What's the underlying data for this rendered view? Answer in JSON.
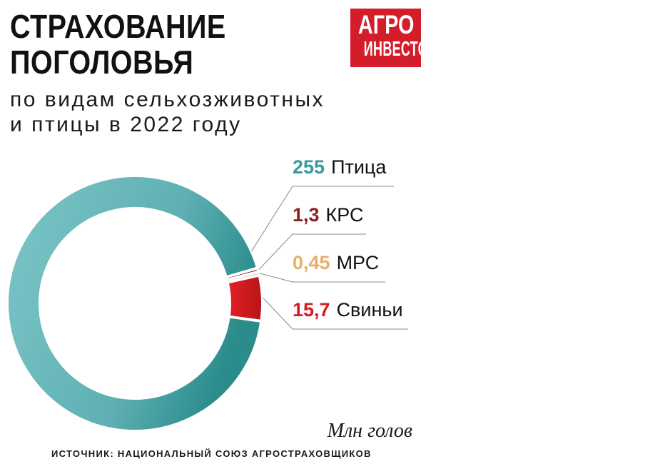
{
  "title": "СТРАХОВАНИЕ ПОГОЛОВЬЯ",
  "subtitle_line1": "по видам сельхозживотных",
  "subtitle_line2": "и птицы в 2022 году",
  "logo": {
    "line1": "АГРО",
    "line2": "ИНВЕСТОР"
  },
  "unit": "Млн голов",
  "source": "ИСТОЧНИК: НАЦИОНАЛЬНЫЙ СОЮЗ АГРОСТРАХОВЩИКОВ",
  "colors": {
    "brand": "#d31d2a",
    "text": "#111111",
    "leader": "#888888"
  },
  "chart_data": {
    "type": "pie",
    "donut": true,
    "unit": "Млн голов",
    "series": [
      {
        "name": "Птица",
        "value": 255,
        "label": "255",
        "color": "#3a9a9c"
      },
      {
        "name": "КРС",
        "value": 1.3,
        "label": "1,3",
        "color": "#8b1f24"
      },
      {
        "name": "МРС",
        "value": 0.45,
        "label": "0,45",
        "color": "#e7b06a"
      },
      {
        "name": "Свиньи",
        "value": 15.7,
        "label": "15,7",
        "color": "#d31d20"
      }
    ]
  }
}
